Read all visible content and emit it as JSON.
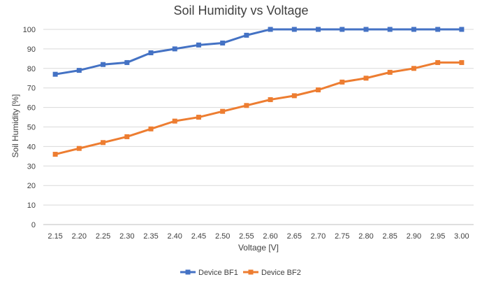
{
  "chart_data": {
    "type": "line",
    "title": "Soil Humidity vs Voltage",
    "xlabel": "Voltage [V]",
    "ylabel": "Soil Humidity [%]",
    "ylim": [
      0,
      100
    ],
    "yticks": [
      "0",
      "10",
      "20",
      "30",
      "40",
      "50",
      "60",
      "70",
      "80",
      "90",
      "100"
    ],
    "categories": [
      "2.15",
      "2.20",
      "2.25",
      "2.30",
      "2.35",
      "2.40",
      "2.45",
      "2.50",
      "2.55",
      "2.60",
      "2.65",
      "2.70",
      "2.75",
      "2.80",
      "2.85",
      "2.90",
      "2.95",
      "3.00"
    ],
    "grid": true,
    "legend_position": "bottom",
    "series": [
      {
        "name": "Device BF1",
        "color": "#4472c4",
        "marker": "square",
        "values": [
          77,
          79,
          82,
          83,
          88,
          90,
          92,
          93,
          97,
          100,
          100,
          100,
          100,
          100,
          100,
          100,
          100,
          100
        ]
      },
      {
        "name": "Device BF2",
        "color": "#ed7d31",
        "marker": "square",
        "values": [
          36,
          39,
          42,
          45,
          49,
          53,
          55,
          58,
          61,
          64,
          66,
          69,
          73,
          75,
          78,
          80,
          83,
          83
        ]
      }
    ]
  }
}
